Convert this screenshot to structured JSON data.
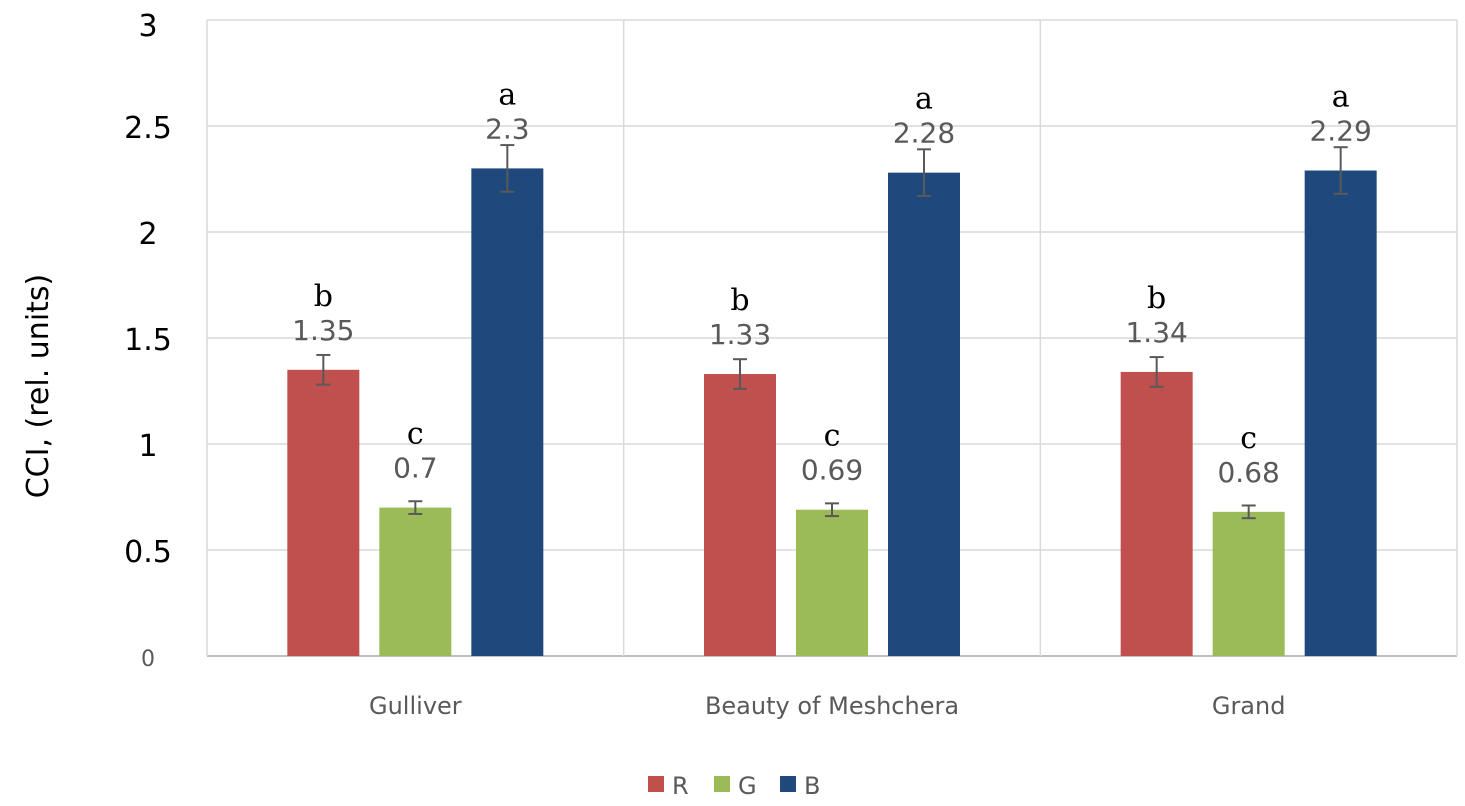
{
  "chart_data": {
    "type": "bar",
    "categories": [
      "Gulliver",
      "Beauty of Meshchera",
      "Grand"
    ],
    "series": [
      {
        "name": "R",
        "color": "#c0504d",
        "values": [
          1.35,
          1.33,
          1.34
        ],
        "errors": [
          0.07,
          0.07,
          0.07
        ],
        "value_labels": [
          "1.35",
          "1.33",
          "1.34"
        ],
        "letters": [
          "b",
          "b",
          "b"
        ]
      },
      {
        "name": "G",
        "color": "#9bbb59",
        "values": [
          0.7,
          0.69,
          0.68
        ],
        "errors": [
          0.03,
          0.03,
          0.03
        ],
        "value_labels": [
          "0.7",
          "0.69",
          "0.68"
        ],
        "letters": [
          "c",
          "c",
          "c"
        ]
      },
      {
        "name": "B",
        "color": "#1f497d",
        "values": [
          2.3,
          2.28,
          2.29
        ],
        "errors": [
          0.11,
          0.11,
          0.11
        ],
        "value_labels": [
          "2.3",
          "2.28",
          "2.29"
        ],
        "letters": [
          "a",
          "a",
          "a"
        ]
      }
    ],
    "ylabel": "CCI, (rel. units)",
    "xlabel": "",
    "ylim": [
      0,
      3
    ],
    "yticks": [
      0,
      0.5,
      1,
      1.5,
      2,
      2.5,
      3
    ],
    "ytick_labels": [
      "0",
      "0.5",
      "1",
      "1.5",
      "2",
      "2.5",
      "3"
    ],
    "grid": true,
    "legend": "bottom-center"
  }
}
